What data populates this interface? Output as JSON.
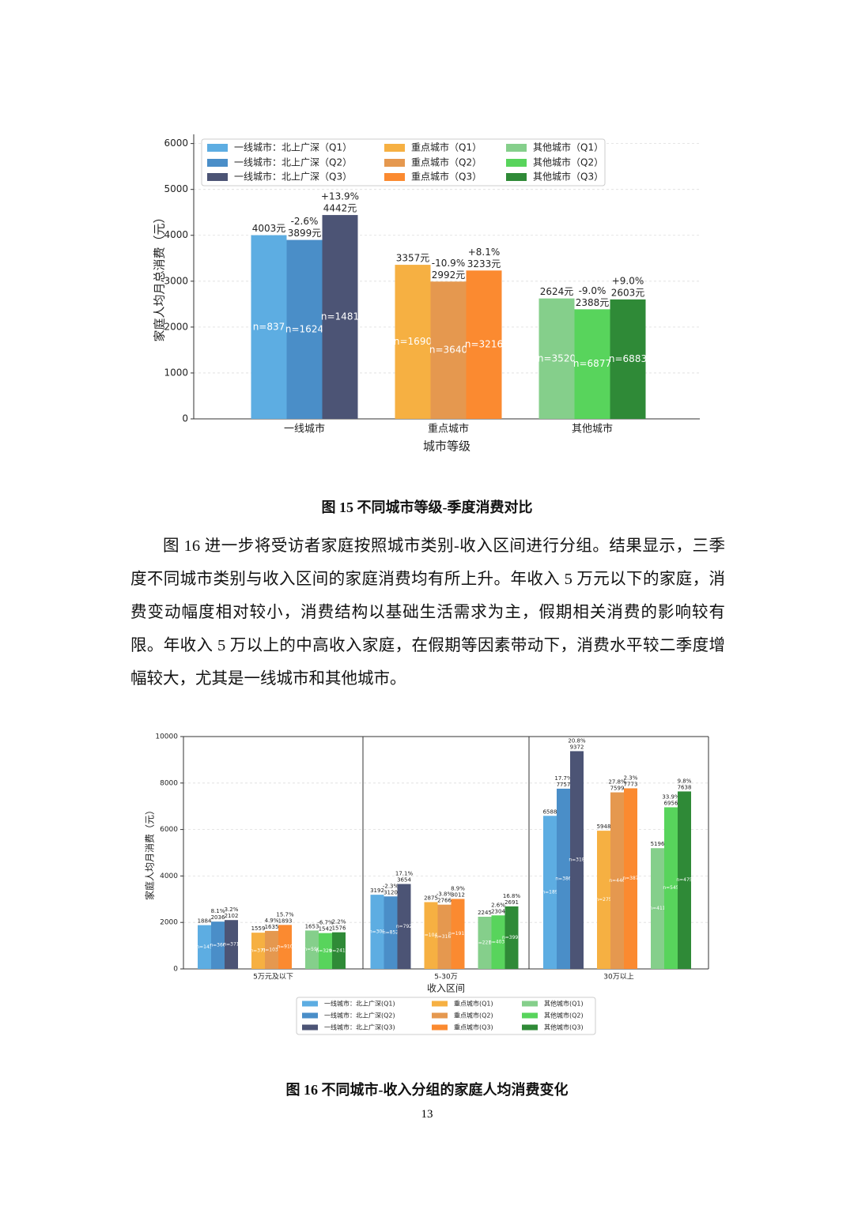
{
  "chart_data": [
    {
      "type": "bar",
      "x_label": "城市等级",
      "y_label": "家庭人均月总消费（元）",
      "categories": [
        "一线城市",
        "重点城市",
        "其他城市"
      ],
      "ylim": [
        0,
        6200
      ],
      "yticks": [
        0,
        1000,
        2000,
        3000,
        4000,
        5000,
        6000
      ],
      "grid": true,
      "legend": "upper left",
      "series": [
        {
          "name": "一线城市：北上广深（Q1）",
          "color": "#5dade2",
          "values": [
            4003,
            null,
            null
          ],
          "value_labels": [
            "4003元",
            null,
            null
          ],
          "n_labels": [
            "n=837",
            null,
            null
          ]
        },
        {
          "name": "一线城市：北上广深（Q2）",
          "color": "#4a8ec8",
          "values": [
            3899,
            null,
            null
          ],
          "value_labels": [
            "3899元",
            null,
            null
          ],
          "annotations": [
            "-2.6%",
            null,
            null
          ],
          "n_labels": [
            "n=1624",
            null,
            null
          ]
        },
        {
          "name": "一线城市：北上广深（Q3）",
          "color": "#4c5475",
          "values": [
            4442,
            null,
            null
          ],
          "value_labels": [
            "4442元",
            null,
            null
          ],
          "annotations": [
            "+13.9%",
            null,
            null
          ],
          "n_labels": [
            "n=1481",
            null,
            null
          ]
        },
        {
          "name": "重点城市（Q1）",
          "color": "#f6b042",
          "values": [
            null,
            3357,
            null
          ],
          "value_labels": [
            null,
            "3357元",
            null
          ],
          "n_labels": [
            null,
            "n=1690",
            null
          ]
        },
        {
          "name": "重点城市（Q2）",
          "color": "#e5984f",
          "values": [
            null,
            2992,
            null
          ],
          "value_labels": [
            null,
            "2992元",
            null
          ],
          "annotations": [
            null,
            "-10.9%",
            null
          ],
          "n_labels": [
            null,
            "n=3640",
            null
          ]
        },
        {
          "name": "重点城市（Q3）",
          "color": "#fb8a30",
          "values": [
            null,
            3233,
            null
          ],
          "value_labels": [
            null,
            "3233元",
            null
          ],
          "annotations": [
            null,
            "+8.1%",
            null
          ],
          "n_labels": [
            null,
            "n=3216",
            null
          ]
        },
        {
          "name": "其他城市（Q1）",
          "color": "#85cf8b",
          "values": [
            null,
            null,
            2624
          ],
          "value_labels": [
            null,
            null,
            "2624元"
          ],
          "n_labels": [
            null,
            null,
            "n=3520"
          ]
        },
        {
          "name": "其他城市（Q2）",
          "color": "#58d45c",
          "values": [
            null,
            null,
            2388
          ],
          "value_labels": [
            null,
            null,
            "2388元"
          ],
          "annotations": [
            null,
            null,
            "-9.0%"
          ],
          "n_labels": [
            null,
            null,
            "n=6877"
          ]
        },
        {
          "name": "其他城市（Q3）",
          "color": "#2f8a37",
          "values": [
            null,
            null,
            2603
          ],
          "value_labels": [
            null,
            null,
            "2603元"
          ],
          "annotations": [
            null,
            null,
            "+9.0%"
          ],
          "n_labels": [
            null,
            null,
            "n=6883"
          ]
        }
      ]
    },
    {
      "type": "bar",
      "x_label": "收入区间",
      "y_label": "家庭人均月消费（元）",
      "categories": [
        "5万元及以下",
        "5-30万",
        "30万以上"
      ],
      "ylim": [
        0,
        10000
      ],
      "yticks": [
        0,
        2000,
        4000,
        6000,
        8000,
        10000
      ],
      "grid": true,
      "legend": "lower center",
      "series": [
        {
          "name": "一线城市：北上广深(Q1)",
          "color": "#5dade2",
          "values": [
            1884,
            3192,
            6588
          ],
          "n_labels": [
            "n=143",
            "n=300",
            "n=189"
          ]
        },
        {
          "name": "一线城市：北上广深(Q2)",
          "color": "#4a8ec8",
          "values": [
            2036,
            3120,
            7757
          ],
          "annotations": [
            "8.1%",
            "-2.3%",
            "17.7%"
          ],
          "n_labels": [
            "n=366",
            "n=852",
            "n=386"
          ]
        },
        {
          "name": "一线城市：北上广深(Q3)",
          "color": "#4c5475",
          "values": [
            2102,
            3654,
            9372
          ],
          "annotations": [
            "3.2%",
            "17.1%",
            "20.8%"
          ],
          "n_labels": [
            "n=371",
            "n=792",
            "n=318"
          ]
        },
        {
          "name": "重点城市(Q1)",
          "color": "#f6b042",
          "values": [
            1559,
            2875,
            5948
          ],
          "n_labels": [
            "n=371",
            "n=1044",
            "n=275"
          ]
        },
        {
          "name": "重点城市(Q2)",
          "color": "#e5984f",
          "values": [
            1635,
            2766,
            7599
          ],
          "annotations": [
            "4.9%",
            "-3.8%",
            "27.8%"
          ],
          "n_labels": [
            "n=1035",
            "n=3169",
            "n=446"
          ]
        },
        {
          "name": "重点城市(Q3)",
          "color": "#fb8a30",
          "values": [
            1893,
            3012,
            7773
          ],
          "annotations": [
            "15.7%",
            "8.9%",
            "2.3%"
          ],
          "n_labels": [
            "n=910",
            "n=1919",
            "n=387"
          ]
        },
        {
          "name": "其他城市(Q1)",
          "color": "#85cf8b",
          "values": [
            1653,
            2245,
            5196
          ],
          "n_labels": [
            "n=596",
            "n=2211",
            "n=411"
          ]
        },
        {
          "name": "其他城市(Q2)",
          "color": "#58d45c",
          "values": [
            1542,
            2304,
            6956
          ],
          "annotations": [
            "-6.7%",
            "2.6%",
            "33.9%"
          ],
          "n_labels": [
            "n=3298",
            "n=4034",
            "n=545"
          ]
        },
        {
          "name": "其他城市(Q3)",
          "color": "#2f8a37",
          "values": [
            1576,
            2691,
            7638
          ],
          "annotations": [
            "2.2%",
            "16.8%",
            "9.8%"
          ],
          "n_labels": [
            "n=2412",
            "n=3995",
            "n=475"
          ]
        }
      ]
    }
  ],
  "captions": [
    "图 15 不同城市等级-季度消费对比",
    "图 16 不同城市-收入分组的家庭人均消费变化"
  ],
  "paragraph": "图 16 进一步将受访者家庭按照城市类别-收入区间进行分组。结果显示，三季度不同城市类别与收入区间的家庭消费均有所上升。年收入 5 万元以下的家庭，消费变动幅度相对较小，消费结构以基础生活需求为主，假期相关消费的影响较有限。年收入 5 万以上的中高收入家庭，在假期等因素带动下，消费水平较二季度增幅较大，尤其是一线城市和其他城市。",
  "page_number": 13
}
